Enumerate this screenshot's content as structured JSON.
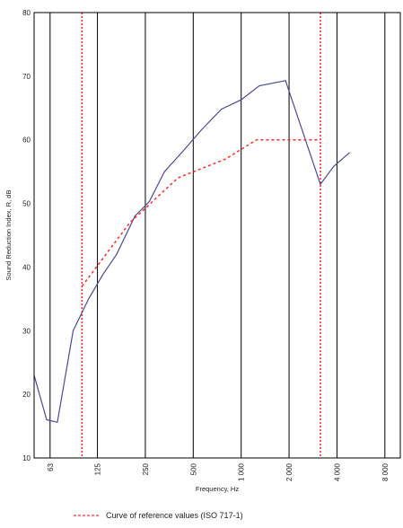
{
  "chart_data": {
    "type": "line",
    "xlabel": "Frequency, Hz",
    "ylabel": "Sound Reduction Index, R, dB",
    "x_scale": "log",
    "xlim": [
      50,
      10000
    ],
    "ylim": [
      10,
      80
    ],
    "x_ticks": [
      {
        "value": 63,
        "label": "63"
      },
      {
        "value": 125,
        "label": "125"
      },
      {
        "value": 250,
        "label": "250"
      },
      {
        "value": 500,
        "label": "500"
      },
      {
        "value": 1000,
        "label": "1 000"
      },
      {
        "value": 2000,
        "label": "2 000"
      },
      {
        "value": 4000,
        "label": "4 000"
      },
      {
        "value": 8000,
        "label": "8 000"
      }
    ],
    "y_ticks": [
      {
        "value": 10,
        "label": "10"
      },
      {
        "value": 20,
        "label": "20"
      },
      {
        "value": 30,
        "label": "30"
      },
      {
        "value": 40,
        "label": "40"
      },
      {
        "value": 50,
        "label": "50"
      },
      {
        "value": 60,
        "label": "60"
      },
      {
        "value": 70,
        "label": "70"
      },
      {
        "value": 80,
        "label": "80"
      }
    ],
    "grid": "vertical",
    "vertical_markers": [
      100,
      3150
    ],
    "series": [
      {
        "color": "#4a4a9a",
        "style": "solid",
        "points": [
          [
            50,
            23
          ],
          [
            60,
            16
          ],
          [
            70,
            15.6
          ],
          [
            88,
            30
          ],
          [
            110,
            35
          ],
          [
            135,
            38.8
          ],
          [
            165,
            42
          ],
          [
            215,
            48
          ],
          [
            265,
            50.3
          ],
          [
            330,
            55
          ],
          [
            430,
            58.2
          ],
          [
            560,
            61.5
          ],
          [
            750,
            64.8
          ],
          [
            1000,
            66.3
          ],
          [
            1300,
            68.5
          ],
          [
            1900,
            69.3
          ],
          [
            3150,
            53
          ],
          [
            3800,
            55.8
          ],
          [
            4800,
            58
          ]
        ]
      },
      {
        "name": "Curve of reference values (ISO 717-1)",
        "color": "#ff2a2a",
        "style": "dashed",
        "points": [
          [
            100,
            37
          ],
          [
            200,
            47
          ],
          [
            400,
            54
          ],
          [
            800,
            57
          ],
          [
            1250,
            60
          ],
          [
            3150,
            60
          ]
        ]
      }
    ],
    "legend": {
      "position": "bottom",
      "text": "Curve of reference values (ISO 717-1)"
    }
  }
}
